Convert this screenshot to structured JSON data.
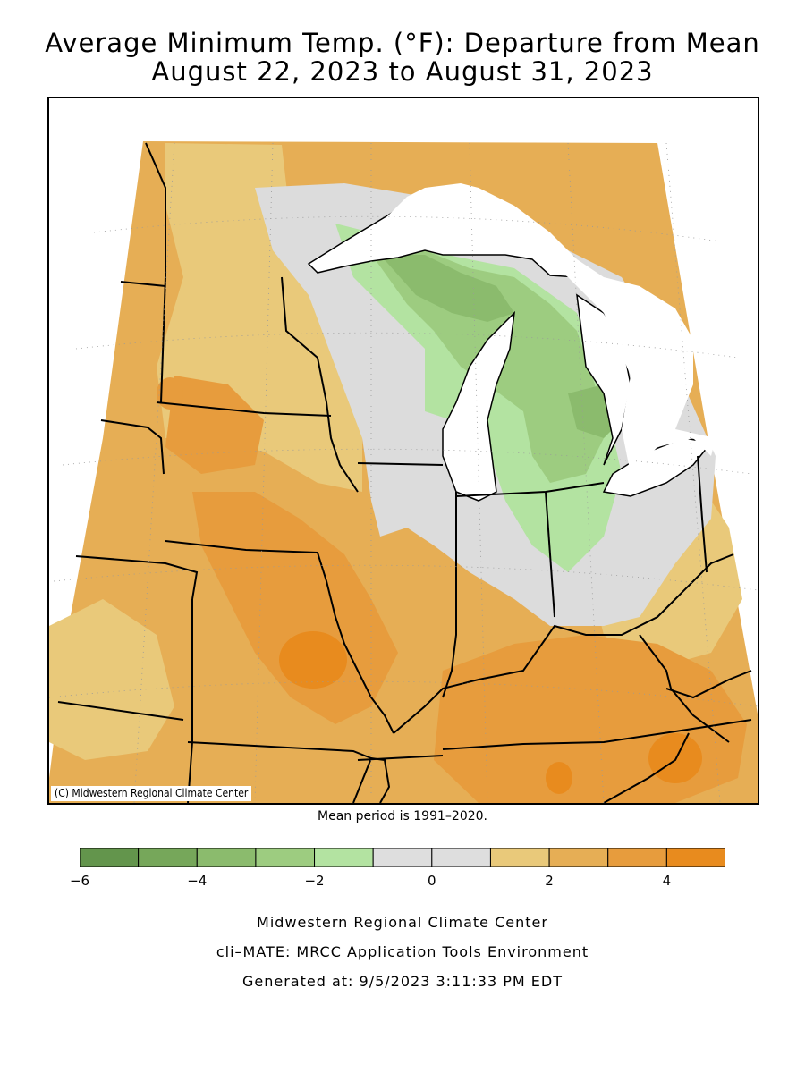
{
  "title_line1": "Average Minimum Temp. (°F): Departure from Mean",
  "title_line2": "August 22, 2023 to August 31, 2023",
  "map_credit": "(C) Midwestern Regional Climate Center",
  "mean_period": "Mean period is 1991–2020.",
  "legend": {
    "colors": [
      "#63954c",
      "#76a75a",
      "#8bbb6d",
      "#9dcc80",
      "#b3e3a1",
      "#dedede",
      "#dedede",
      "#e9c97a",
      "#e6ae55",
      "#e79c3d",
      "#e88b1e"
    ],
    "bounds": [
      -6,
      -5,
      -4,
      -3,
      -2,
      -1,
      0,
      1,
      2,
      3,
      4,
      5
    ],
    "tick_labels": [
      "−6",
      "−4",
      "−2",
      "0",
      "2",
      "4"
    ],
    "tick_values": [
      -6,
      -4,
      -2,
      0,
      2,
      4
    ]
  },
  "palette": {
    "gray": "#dcdcdc",
    "light_orange": "#e9c97a",
    "orange": "#e6ae55",
    "dark_orange": "#e79c3d",
    "deep_orange": "#e88b1e",
    "light_green": "#b3e3a1",
    "green": "#9dcc80",
    "mid_green": "#8bbb6d",
    "dark_green": "#76a75a"
  },
  "footer_line1": "Midwestern Regional Climate Center",
  "footer_line2": "cli–MATE: MRCC Application Tools Environment",
  "footer_line3": "Generated at: 9/5/2023 3:11:33 PM EDT"
}
